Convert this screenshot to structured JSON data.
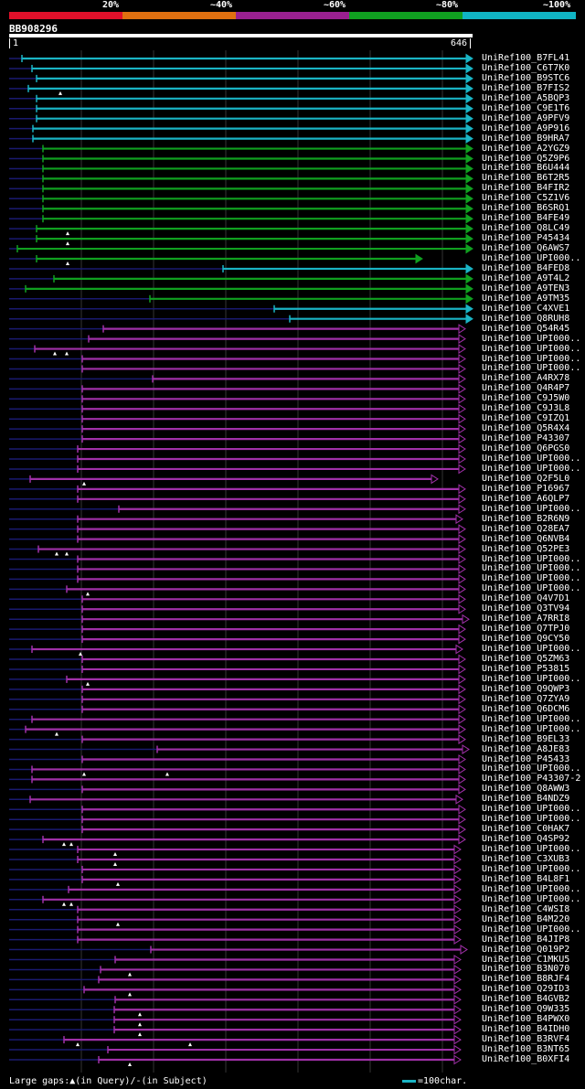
{
  "legend": {
    "colors": [
      "#e0102a",
      "#e07010",
      "#9a2090",
      "#10a020",
      "#10b4c4"
    ],
    "labels": [
      "20%",
      "~40%",
      "~60%",
      "~80%",
      "~100%"
    ]
  },
  "query": {
    "id": "BB908296",
    "start": "1",
    "end": "646"
  },
  "hits": [
    "UniRef100_B7FL41",
    "UniRef100_C6T7K0",
    "UniRef100_B9STC6",
    "UniRef100_B7FIS2",
    "UniRef100_A5BQP3",
    "UniRef100_C9E1T6",
    "UniRef100_A9PFV9",
    "UniRef100_A9P916",
    "UniRef100_B9HRA7",
    "UniRef100_A2YGZ9",
    "UniRef100_Q5Z9P6",
    "UniRef100_B6U444",
    "UniRef100_B6T2R5",
    "UniRef100_B4FIR2",
    "UniRef100_C5Z1V6",
    "UniRef100_B6SRQ1",
    "UniRef100_B4FE49",
    "UniRef100_Q8LC49",
    "UniRef100_P45434",
    "UniRef100_Q6AWS7",
    "UniRef100_UPI000..",
    "UniRef100_B4FED8",
    "UniRef100_A9T4L2",
    "UniRef100_A9TEN3",
    "UniRef100_A9TM35",
    "UniRef100_C4XVE1",
    "UniRef100_Q8RUH8",
    "UniRef100_Q54R45",
    "UniRef100_UPI000..",
    "UniRef100_UPI000..",
    "UniRef100_UPI000..",
    "UniRef100_UPI000..",
    "UniRef100_A4RX78",
    "UniRef100_Q4R4P7",
    "UniRef100_C9J5W0",
    "UniRef100_C9J3L8",
    "UniRef100_C9IZQ1",
    "UniRef100_Q5R4X4",
    "UniRef100_P43307",
    "UniRef100_Q6PGS0",
    "UniRef100_UPI000..",
    "UniRef100_UPI000..",
    "UniRef100_Q2F5L0",
    "UniRef100_P16967",
    "UniRef100_A6QLP7",
    "UniRef100_UPI000..",
    "UniRef100_B2R6N9",
    "UniRef100_Q28EA7",
    "UniRef100_Q6NVB4",
    "UniRef100_Q52PE3",
    "UniRef100_UPI000..",
    "UniRef100_UPI000..",
    "UniRef100_UPI000..",
    "UniRef100_UPI000..",
    "UniRef100_Q4V7D1",
    "UniRef100_Q3TV94",
    "UniRef100_A7RRI8",
    "UniRef100_Q7TPJ0",
    "UniRef100_Q9CY50",
    "UniRef100_UPI000..",
    "UniRef100_Q5ZM63",
    "UniRef100_P53815",
    "UniRef100_UPI000..",
    "UniRef100_Q9QWP3",
    "UniRef100_Q7ZYA9",
    "UniRef100_Q6DCM6",
    "UniRef100_UPI000..",
    "UniRef100_UPI000..",
    "UniRef100_B9EL33",
    "UniRef100_A8JE83",
    "UniRef100_P45433",
    "UniRef100_UPI000..",
    "UniRef100_P43307-2",
    "UniRef100_Q8AWW3",
    "UniRef100_B4NDZ9",
    "UniRef100_UPI000..",
    "UniRef100_UPI000..",
    "UniRef100_C0HAK7",
    "UniRef100_Q4SP92",
    "UniRef100_UPI000..",
    "UniRef100_C3XUB3",
    "UniRef100_UPI000..",
    "UniRef100_B4L8F1",
    "UniRef100_UPI000..",
    "UniRef100_UPI000..",
    "UniRef100_C4WSI8",
    "UniRef100_B4M220",
    "UniRef100_UPI000..",
    "UniRef100_B4JIP8",
    "UniRef100_Q019P2",
    "UniRef100_C1MKU5",
    "UniRef100_B3N070",
    "UniRef100_B8RJF4",
    "UniRef100_Q29ID3",
    "UniRef100_B4GVB2",
    "UniRef100_Q9W335",
    "UniRef100_B4PWX0",
    "UniRef100_B4IDH0",
    "UniRef100_B3RVF4",
    "UniRef100_B3NT65",
    "UniRef100_B0XFI4"
  ],
  "footer": {
    "large_gaps": "Large gaps:▲(in Query)/-(in Subject)",
    "scale": "=100char."
  }
}
